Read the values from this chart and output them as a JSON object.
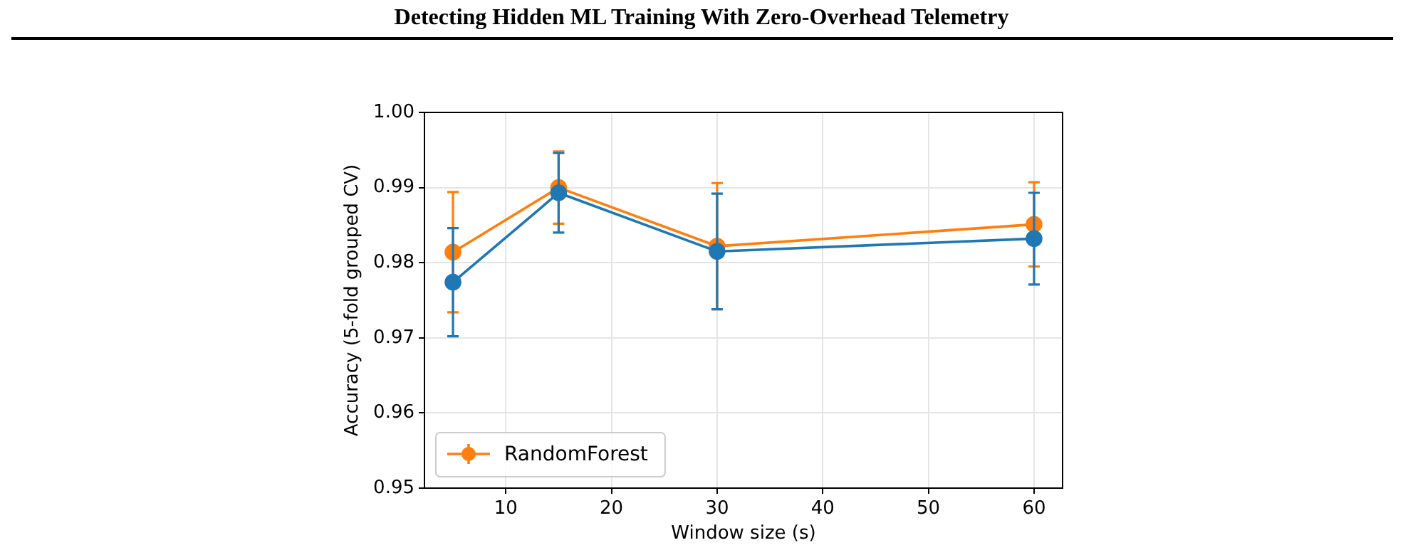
{
  "chart_data": {
    "type": "line",
    "title": "Detecting Hidden ML Training With Zero-Overhead Telemetry",
    "xlabel": "Window size (s)",
    "ylabel": "Accuracy (5-fold grouped CV)",
    "x": [
      5,
      15,
      30,
      60
    ],
    "series": [
      {
        "color": "#1f77b4",
        "values": [
          0.9774,
          0.9893,
          0.9815,
          0.9832
        ],
        "errors": [
          0.0072,
          0.0053,
          0.0077,
          0.0061
        ]
      },
      {
        "name": "RandomForest",
        "color": "#ff7f0e",
        "values": [
          0.9814,
          0.99,
          0.9822,
          0.9851
        ],
        "errors": [
          0.008,
          0.0048,
          0.0084,
          0.0056
        ]
      }
    ],
    "xlim": [
      2.3,
      62.7
    ],
    "xticks": [
      10,
      20,
      30,
      40,
      50,
      60
    ],
    "ylim": [
      0.95,
      1.0
    ],
    "yticks": [
      0.95,
      0.96,
      0.97,
      0.98,
      0.99,
      {
        "value": 1.0,
        "label": "1.00"
      }
    ],
    "grid": true,
    "legend": "bottom left",
    "marker": "circle",
    "line_style": "solid"
  }
}
